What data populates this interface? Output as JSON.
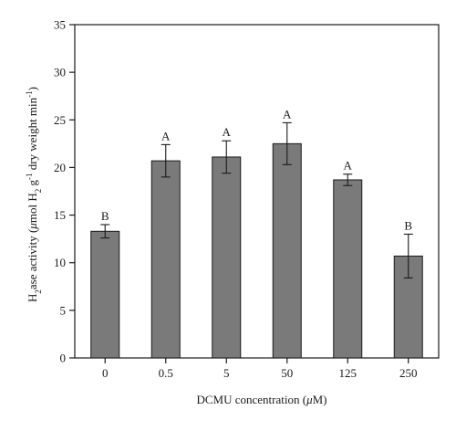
{
  "chart_data": {
    "type": "bar",
    "categories": [
      "0",
      "0.5",
      "5",
      "50",
      "125",
      "250"
    ],
    "values": [
      13.3,
      20.7,
      21.1,
      22.5,
      18.7,
      10.7
    ],
    "errors": [
      0.7,
      1.7,
      1.7,
      2.2,
      0.6,
      2.3
    ],
    "significance_letters": [
      "B",
      "A",
      "A",
      "A",
      "A",
      "B"
    ],
    "ylim": [
      0,
      35
    ],
    "yticks": [
      "0",
      "5",
      "10",
      "15",
      "20",
      "25",
      "30",
      "35"
    ],
    "ylabel": {
      "prefix": "H",
      "prefix_sub": "2",
      "middle": "ase activity (",
      "mu": "μ",
      "unit_a": "mol H",
      "unit_a_sub": "2",
      "unit_b": " g",
      "unit_b_sup": "-1",
      "unit_c": " dry weight min",
      "unit_c_sup": "-1",
      "close": ")"
    },
    "xlabel": {
      "text": "DCMU concentration (",
      "mu": "μ",
      "unit": "M)"
    },
    "colors": {
      "bar": "#7a7a7a",
      "bar_edge": "#1a1a1a",
      "axis": "#1a1a1a"
    }
  }
}
